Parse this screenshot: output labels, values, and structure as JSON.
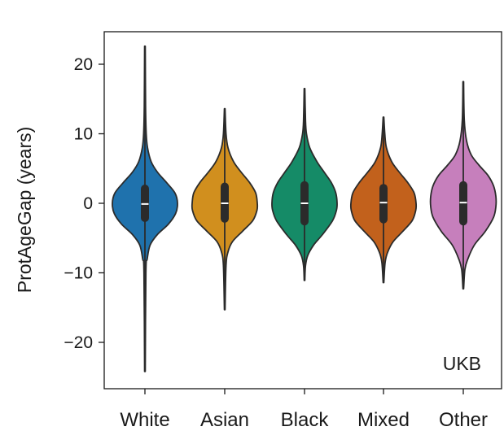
{
  "chart_data": {
    "type": "violin",
    "title": "",
    "xlabel": "",
    "ylabel": "ProtAgeGap (years)",
    "ylim": [
      -27,
      25
    ],
    "yticks": [
      20,
      10,
      0,
      -10,
      -20
    ],
    "ytick_labels": [
      "20",
      "10",
      "0",
      "−10",
      "−20"
    ],
    "categories": [
      "White",
      "Asian",
      "Black",
      "Mixed",
      "Other"
    ],
    "annotation": "UKB",
    "grid": false,
    "series": [
      {
        "category": "White",
        "color": "#1f72ad",
        "min": -24.2,
        "max": 22.6,
        "q1": -2.1,
        "median": -0.1,
        "q3": 2.1
      },
      {
        "category": "Asian",
        "color": "#d18f1e",
        "min": -15.3,
        "max": 13.6,
        "q1": -2.2,
        "median": 0.0,
        "q3": 2.4
      },
      {
        "category": "Black",
        "color": "#158b67",
        "min": -11.1,
        "max": 16.5,
        "q1": -2.6,
        "median": 0.0,
        "q3": 2.6
      },
      {
        "category": "Mixed",
        "color": "#c2611c",
        "min": -11.4,
        "max": 12.4,
        "q1": -2.3,
        "median": 0.1,
        "q3": 2.2
      },
      {
        "category": "Other",
        "color": "#c67fbc",
        "min": -12.3,
        "max": 17.5,
        "q1": -2.6,
        "median": 0.1,
        "q3": 2.6
      }
    ]
  }
}
